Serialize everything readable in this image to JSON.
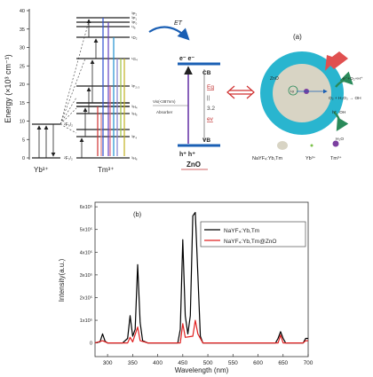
{
  "energy_diagram": {
    "axis_label": "Energy (×10³ cm⁻¹)",
    "y_ticks": [
      "0",
      "5",
      "10",
      "15",
      "20",
      "25",
      "30",
      "35",
      "40"
    ],
    "yb_label": "Yb³⁺",
    "tm_label": "Tm³⁺",
    "yb_levels": [
      "²F₅/₂",
      "²F₇/₂"
    ],
    "tm_levels": [
      "³H₆",
      "³F₄",
      "³H₅",
      "³H₄",
      "³F₂,₃",
      "¹G₄",
      "¹D₂",
      "¹I₆",
      "³P₀",
      "³P₁",
      "³P₂"
    ]
  },
  "zno_band": {
    "et_label": "ET",
    "cb_label": "CB",
    "vb_label": "VB",
    "electrons": "e⁻  e⁻",
    "holes": "h⁺  h⁺",
    "material": "ZnO",
    "absorber_line1": "Vis(<387nm)",
    "absorber_line2": "Absorber",
    "eg_label": "Eg",
    "eg_value": "3.2",
    "eg_unit": "ev"
  },
  "panel_a": {
    "label": "(a)",
    "zno_label": "ZnO",
    "core_label": "Ly",
    "reactions": [
      "e⁻+O₂+H⁺",
      "O₂ + H₂O₂ → OH",
      "h⁺  ·OH",
      "H₂O"
    ],
    "legend": [
      {
        "label": "NaYF₄:Yb,Tm",
        "color": "#d8d4c4"
      },
      {
        "label": "Yb³⁺",
        "color": "#7cc24a"
      },
      {
        "label": "Tm³⁺",
        "color": "#7b3fa0"
      }
    ]
  },
  "chart_data": {
    "type": "line",
    "panel_label": "(b)",
    "xlabel": "Wavelength (nm)",
    "ylabel": "Intensity(a.u.)",
    "xlim": [
      275,
      700
    ],
    "ylim": [
      -60000,
      620000
    ],
    "x_ticks": [
      300,
      350,
      400,
      450,
      500,
      550,
      600,
      650,
      700
    ],
    "y_ticks": [
      {
        "v": 0,
        "label": "0"
      },
      {
        "v": 100000,
        "label": "1x10⁵"
      },
      {
        "v": 200000,
        "label": "2x10⁵"
      },
      {
        "v": 300000,
        "label": "3x10⁵"
      },
      {
        "v": 400000,
        "label": "4x10⁵"
      },
      {
        "v": 500000,
        "label": "5x10⁵"
      },
      {
        "v": 600000,
        "label": "6x10⁵"
      }
    ],
    "series": [
      {
        "name": "NaYF₄:Yb,Tm",
        "color": "#000000",
        "points": [
          [
            275,
            0
          ],
          [
            285,
            5000
          ],
          [
            290,
            40000
          ],
          [
            295,
            8000
          ],
          [
            300,
            0
          ],
          [
            330,
            0
          ],
          [
            340,
            20000
          ],
          [
            345,
            120000
          ],
          [
            350,
            30000
          ],
          [
            355,
            60000
          ],
          [
            360,
            345000
          ],
          [
            365,
            90000
          ],
          [
            370,
            10000
          ],
          [
            380,
            0
          ],
          [
            440,
            0
          ],
          [
            445,
            60000
          ],
          [
            450,
            455000
          ],
          [
            455,
            120000
          ],
          [
            460,
            40000
          ],
          [
            465,
            120000
          ],
          [
            470,
            560000
          ],
          [
            475,
            575000
          ],
          [
            480,
            300000
          ],
          [
            485,
            30000
          ],
          [
            490,
            0
          ],
          [
            635,
            0
          ],
          [
            640,
            20000
          ],
          [
            645,
            50000
          ],
          [
            650,
            20000
          ],
          [
            655,
            0
          ],
          [
            690,
            0
          ],
          [
            695,
            20000
          ],
          [
            700,
            20000
          ]
        ]
      },
      {
        "name": "NaYF₄:Yb,Tm@ZnO",
        "color": "#e02020",
        "points": [
          [
            275,
            0
          ],
          [
            290,
            10000
          ],
          [
            300,
            0
          ],
          [
            340,
            0
          ],
          [
            345,
            25000
          ],
          [
            350,
            5000
          ],
          [
            360,
            70000
          ],
          [
            365,
            10000
          ],
          [
            380,
            0
          ],
          [
            445,
            0
          ],
          [
            450,
            85000
          ],
          [
            455,
            25000
          ],
          [
            470,
            30000
          ],
          [
            475,
            100000
          ],
          [
            480,
            40000
          ],
          [
            490,
            0
          ],
          [
            640,
            0
          ],
          [
            645,
            35000
          ],
          [
            650,
            0
          ],
          [
            690,
            0
          ],
          [
            695,
            10000
          ],
          [
            700,
            10000
          ]
        ]
      }
    ]
  }
}
